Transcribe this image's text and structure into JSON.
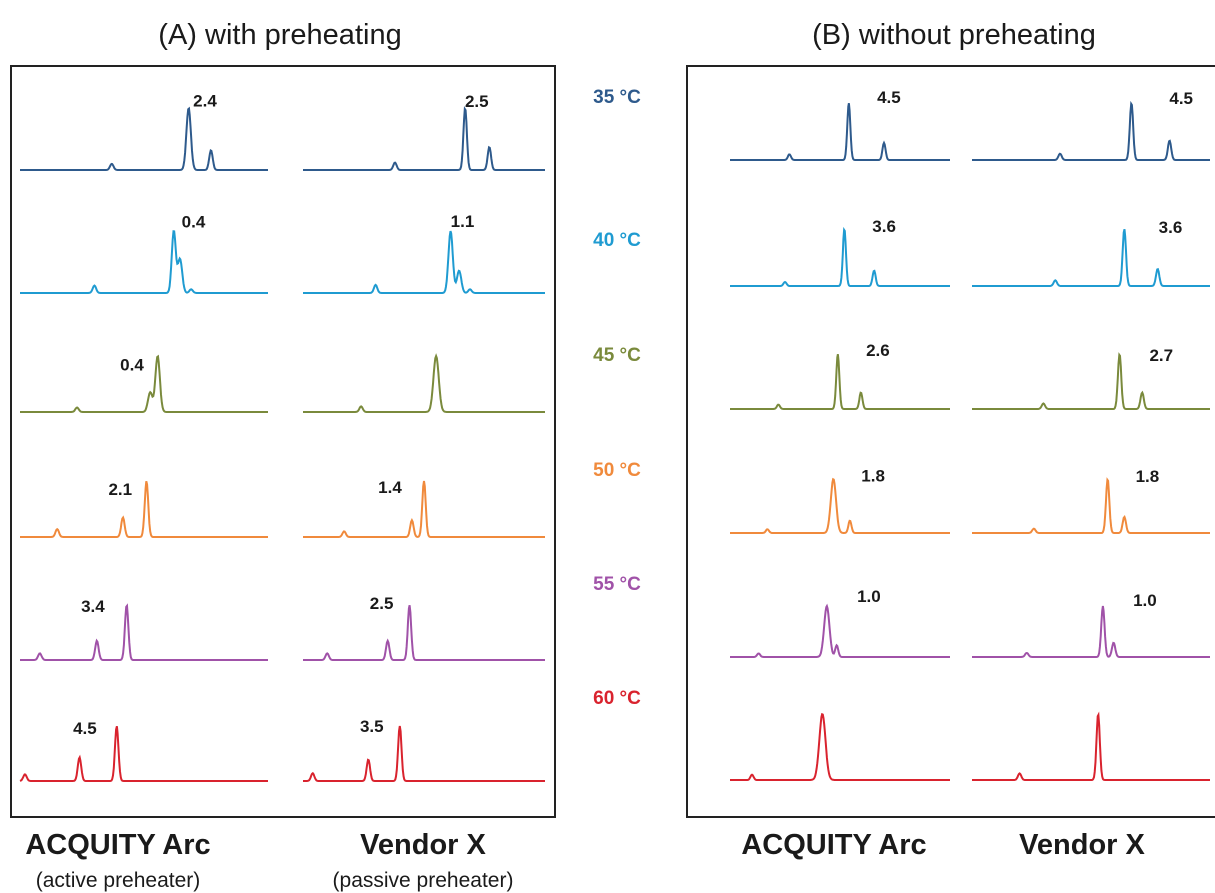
{
  "chart_data": {
    "type": "line",
    "temperatures": [
      {
        "label": "35 °C",
        "color": "#2e5a8c"
      },
      {
        "label": "40 °C",
        "color": "#1f9bd1"
      },
      {
        "label": "45 °C",
        "color": "#7a8a3c"
      },
      {
        "label": "50 °C",
        "color": "#f08a3c"
      },
      {
        "label": "55 °C",
        "color": "#a052a8"
      },
      {
        "label": "60 °C",
        "color": "#d9232e"
      }
    ],
    "panels": [
      {
        "title": "(A) with preheating",
        "columns": [
          {
            "label": "ACQUITY Arc",
            "sublabel": "(active preheater)"
          },
          {
            "label": "Vendor X",
            "sublabel": "(passive preheater)"
          }
        ],
        "traces": [
          [
            {
              "resolution": "2.4",
              "peaks": [
                [
                  0.37,
                  0.1
                ],
                [
                  0.68,
                  1.0,
                  0.009
                ],
                [
                  0.77,
                  0.32
                ]
              ]
            },
            {
              "resolution": "0.4",
              "peaks": [
                [
                  0.3,
                  0.12
                ],
                [
                  0.62,
                  1.0,
                  0.008
                ],
                [
                  0.645,
                  0.55,
                  0.009
                ],
                [
                  0.69,
                  0.06
                ]
              ]
            },
            {
              "resolution": "0.4",
              "peaks": [
                [
                  0.23,
                  0.08
                ],
                [
                  0.525,
                  0.35,
                  0.009
                ],
                [
                  0.555,
                  1.0,
                  0.009
                ]
              ]
            },
            {
              "resolution": "2.1",
              "peaks": [
                [
                  0.15,
                  0.14
                ],
                [
                  0.415,
                  0.35
                ],
                [
                  0.51,
                  1.0
                ]
              ]
            },
            {
              "resolution": "3.4",
              "peaks": [
                [
                  0.08,
                  0.12
                ],
                [
                  0.31,
                  0.35
                ],
                [
                  0.43,
                  1.0
                ]
              ]
            },
            {
              "resolution": "4.5",
              "peaks": [
                [
                  0.02,
                  0.12
                ],
                [
                  0.24,
                  0.43
                ],
                [
                  0.39,
                  1.0
                ]
              ]
            }
          ],
          [
            {
              "resolution": "2.5",
              "peaks": [
                [
                  0.38,
                  0.12
                ],
                [
                  0.67,
                  1.0
                ],
                [
                  0.77,
                  0.37
                ]
              ]
            },
            {
              "resolution": "1.1",
              "peaks": [
                [
                  0.3,
                  0.13
                ],
                [
                  0.61,
                  1.0,
                  0.009
                ],
                [
                  0.645,
                  0.36,
                  0.009
                ],
                [
                  0.69,
                  0.06
                ]
              ]
            },
            {
              "resolution": "",
              "peaks": [
                [
                  0.24,
                  0.1
                ],
                [
                  0.55,
                  1.0,
                  0.011
                ]
              ]
            },
            {
              "resolution": "1.4",
              "peaks": [
                [
                  0.17,
                  0.1
                ],
                [
                  0.45,
                  0.3
                ],
                [
                  0.5,
                  1.0
                ]
              ]
            },
            {
              "resolution": "2.5",
              "peaks": [
                [
                  0.1,
                  0.12
                ],
                [
                  0.35,
                  0.35
                ],
                [
                  0.44,
                  1.0
                ]
              ]
            },
            {
              "resolution": "3.5",
              "peaks": [
                [
                  0.04,
                  0.14
                ],
                [
                  0.27,
                  0.39
                ],
                [
                  0.4,
                  1.0
                ]
              ]
            }
          ]
        ]
      },
      {
        "title": "(B) without preheating",
        "columns": [
          {
            "label": "ACQUITY Arc",
            "sublabel": ""
          },
          {
            "label": "Vendor X",
            "sublabel": ""
          }
        ],
        "traces": [
          [
            {
              "resolution": "4.5",
              "peaks": [
                [
                  0.27,
                  0.1
                ],
                [
                  0.54,
                  1.0
                ],
                [
                  0.7,
                  0.3
                ]
              ]
            },
            {
              "resolution": "3.6",
              "peaks": [
                [
                  0.25,
                  0.07
                ],
                [
                  0.52,
                  1.0
                ],
                [
                  0.655,
                  0.27
                ]
              ]
            },
            {
              "resolution": "2.6",
              "peaks": [
                [
                  0.22,
                  0.08
                ],
                [
                  0.49,
                  1.0
                ],
                [
                  0.595,
                  0.3
                ]
              ]
            },
            {
              "resolution": "1.8",
              "peaks": [
                [
                  0.17,
                  0.07
                ],
                [
                  0.47,
                  1.0,
                  0.012
                ],
                [
                  0.545,
                  0.23
                ]
              ]
            },
            {
              "resolution": "1.0",
              "peaks": [
                [
                  0.13,
                  0.07
                ],
                [
                  0.44,
                  1.0,
                  0.012
                ],
                [
                  0.485,
                  0.23
                ]
              ]
            },
            {
              "resolution": "",
              "peaks": [
                [
                  0.1,
                  0.08
                ],
                [
                  0.42,
                  1.0,
                  0.014
                ]
              ]
            }
          ],
          [
            {
              "resolution": "4.5",
              "peaks": [
                [
                  0.37,
                  0.11
                ],
                [
                  0.67,
                  1.0
                ],
                [
                  0.83,
                  0.34
                ]
              ]
            },
            {
              "resolution": "3.6",
              "peaks": [
                [
                  0.35,
                  0.1
                ],
                [
                  0.64,
                  1.0
                ],
                [
                  0.78,
                  0.3
                ]
              ]
            },
            {
              "resolution": "2.7",
              "peaks": [
                [
                  0.3,
                  0.1
                ],
                [
                  0.62,
                  1.0
                ],
                [
                  0.715,
                  0.3
                ]
              ]
            },
            {
              "resolution": "1.8",
              "peaks": [
                [
                  0.26,
                  0.08
                ],
                [
                  0.57,
                  1.0
                ],
                [
                  0.64,
                  0.3
                ]
              ]
            },
            {
              "resolution": "1.0",
              "peaks": [
                [
                  0.23,
                  0.08
                ],
                [
                  0.55,
                  1.0
                ],
                [
                  0.595,
                  0.28
                ]
              ]
            },
            {
              "resolution": "",
              "peaks": [
                [
                  0.2,
                  0.1
                ],
                [
                  0.53,
                  1.0
                ]
              ]
            }
          ]
        ]
      }
    ]
  }
}
